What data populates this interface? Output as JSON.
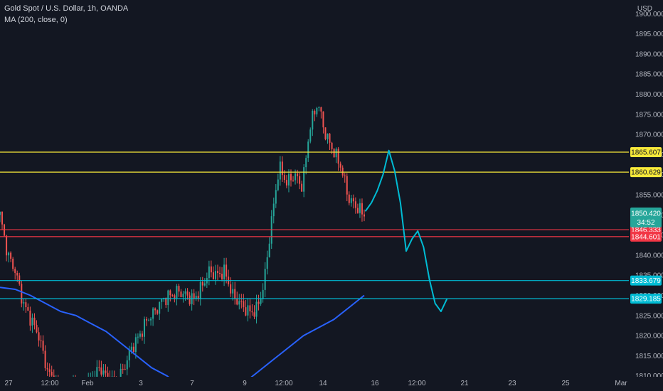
{
  "header": {
    "title": "Gold Spot / U.S. Dollar, 1h, OANDA",
    "indicator": "MA (200, close, 0)"
  },
  "chart_data": {
    "type": "candlestick",
    "currency": "USD",
    "y_ticks": [
      "1810.000",
      "1815.000",
      "1820.000",
      "1825.000",
      "1830.000",
      "1835.000",
      "1840.000",
      "1845.000",
      "1850.000",
      "1855.000",
      "1860.000",
      "1865.000",
      "1870.000",
      "1875.000",
      "1880.000",
      "1885.000",
      "1890.000",
      "1895.000",
      "1900.000"
    ],
    "ylim": [
      1808,
      1902
    ],
    "x_ticks": [
      "27",
      "12:00",
      "Feb",
      "3",
      "7",
      "9",
      "12:00",
      "14",
      "16",
      "12:00",
      "21",
      "23",
      "25",
      "Mar"
    ],
    "price_lines": [
      {
        "label": "1865.607",
        "value": 1865.607,
        "color": "#f7e93a"
      },
      {
        "label": "1860.629",
        "value": 1860.629,
        "color": "#f7e93a"
      },
      {
        "label": "1846.333",
        "value": 1846.333,
        "color": "#f23645"
      },
      {
        "label": "1844.601",
        "value": 1844.601,
        "color": "#f23645"
      },
      {
        "label": "1833.679",
        "value": 1833.679,
        "color": "#00bcd4"
      },
      {
        "label": "1829.185",
        "value": 1829.185,
        "color": "#00bcd4"
      }
    ],
    "last_price": {
      "label": "1850.420",
      "countdown": "34:52",
      "value": 1850.42,
      "color": "#26a69a"
    },
    "close_path": [
      1850,
      1840,
      1836,
      1828,
      1824,
      1820,
      1812,
      1808,
      1806,
      1808,
      1807,
      1806,
      1810,
      1812,
      1809,
      1808,
      1812,
      1817,
      1820,
      1824,
      1826,
      1829,
      1830,
      1831,
      1830,
      1829,
      1832,
      1836,
      1835,
      1836,
      1830,
      1828,
      1826,
      1826,
      1832,
      1848,
      1862,
      1858,
      1860,
      1857,
      1872,
      1878,
      1870,
      1866,
      1862,
      1854,
      1852,
      1850
    ],
    "ma_path": [
      1832,
      1831.5,
      1830,
      1828,
      1826,
      1825,
      1823,
      1821,
      1818,
      1815,
      1812,
      1810,
      1807,
      1805,
      1805,
      1806,
      1808,
      1811,
      1814,
      1817,
      1820,
      1822,
      1824,
      1827,
      1830
    ],
    "projection_path": [
      1851,
      1853,
      1856,
      1860,
      1866,
      1861,
      1853,
      1841,
      1844,
      1846,
      1842,
      1834,
      1828,
      1826,
      1829
    ]
  }
}
